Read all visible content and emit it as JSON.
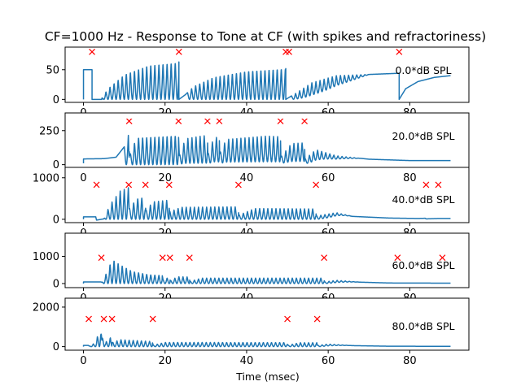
{
  "chart_data": {
    "type": "line",
    "title": "CF=1000 Hz - Response to Tone at CF (with spikes and refractoriness)",
    "xlabel": "Time (msec)",
    "xlim": [
      -4.5,
      94.5
    ],
    "xticks": [
      0,
      20,
      40,
      60,
      80
    ],
    "line_color": "#1f77b4",
    "spike_color": "#ff0000",
    "panels": [
      {
        "level_label": "0.0*dB SPL",
        "ylim": [
          -5,
          88
        ],
        "yticks": [
          0,
          50
        ],
        "envelope": [
          [
            0,
            0
          ],
          [
            0,
            50
          ],
          [
            2.1,
            50
          ],
          [
            2.1,
            0
          ],
          [
            4.5,
            0
          ],
          [
            4.5,
            2
          ],
          [
            6,
            18
          ],
          [
            10,
            42
          ],
          [
            16,
            58
          ],
          [
            22,
            62
          ],
          [
            23.4,
            63
          ],
          [
            23.4,
            0
          ],
          [
            25,
            8
          ],
          [
            27,
            22
          ],
          [
            32,
            38
          ],
          [
            40,
            48
          ],
          [
            49,
            52
          ],
          [
            49.6,
            52
          ],
          [
            49.6,
            0
          ],
          [
            52,
            10
          ],
          [
            56,
            28
          ],
          [
            62,
            40
          ],
          [
            70,
            42
          ],
          [
            77.4,
            44
          ],
          [
            77.4,
            0
          ],
          [
            79,
            18
          ],
          [
            82,
            30
          ],
          [
            86,
            37
          ],
          [
            90,
            40
          ]
        ],
        "oscillation": [
          {
            "start": 4.5,
            "end": 23.4,
            "depth": 1.0
          },
          {
            "start": 25.5,
            "end": 49.6,
            "depth": 1.0
          },
          {
            "start": 51,
            "end": 70,
            "depth_start": 1.0,
            "depth_end": 0.0
          }
        ],
        "spikes": [
          2.1,
          23.4,
          49.6,
          50.4,
          77.4
        ],
        "spike_y": 80
      },
      {
        "level_label": "20.0*dB SPL",
        "ylim": [
          -20,
          380
        ],
        "yticks": [
          0,
          250
        ],
        "envelope": [
          [
            0,
            10
          ],
          [
            0,
            42
          ],
          [
            5,
            44
          ],
          [
            8,
            55
          ],
          [
            10.5,
            150
          ],
          [
            11,
            215
          ],
          [
            11.3,
            65
          ],
          [
            13,
            200
          ],
          [
            22,
            215
          ],
          [
            23.3,
            215
          ],
          [
            23.5,
            65
          ],
          [
            25,
            190
          ],
          [
            29,
            210
          ],
          [
            30.4,
            215
          ],
          [
            30.5,
            75
          ],
          [
            32,
            200
          ],
          [
            33.3,
            200
          ],
          [
            33.4,
            80
          ],
          [
            35,
            185
          ],
          [
            45,
            210
          ],
          [
            48.3,
            205
          ],
          [
            48.4,
            55
          ],
          [
            51,
            155
          ],
          [
            54.2,
            160
          ],
          [
            54.3,
            40
          ],
          [
            57,
            110
          ],
          [
            62,
            65
          ],
          [
            70,
            40
          ],
          [
            80,
            30
          ],
          [
            90,
            30
          ]
        ],
        "oscillation": [
          {
            "start": 10,
            "end": 11.2,
            "depth": 1.0
          },
          {
            "start": 11.5,
            "end": 23.3,
            "depth": 1.0
          },
          {
            "start": 23.6,
            "end": 30.4,
            "depth": 0.95
          },
          {
            "start": 30.6,
            "end": 33.3,
            "depth": 0.9
          },
          {
            "start": 33.6,
            "end": 48.3,
            "depth": 0.9
          },
          {
            "start": 48.6,
            "end": 54.2,
            "depth": 0.85
          },
          {
            "start": 54.4,
            "end": 68,
            "depth_start": 0.85,
            "depth_end": 0.0
          }
        ],
        "spikes": [
          11.2,
          23.3,
          30.4,
          33.3,
          48.3,
          54.2
        ],
        "spike_y": 320
      },
      {
        "level_label": "40.0*dB SPL",
        "ylim": [
          -80,
          1250
        ],
        "yticks": [
          0,
          1000
        ],
        "envelope": [
          [
            0,
            0
          ],
          [
            0,
            60
          ],
          [
            3,
            60
          ],
          [
            3.2,
            -20
          ],
          [
            5,
            10
          ],
          [
            6.5,
            350
          ],
          [
            9,
            680
          ],
          [
            11,
            760
          ],
          [
            11.2,
            250
          ],
          [
            13,
            500
          ],
          [
            15,
            540
          ],
          [
            15.3,
            200
          ],
          [
            17,
            420
          ],
          [
            20.9,
            460
          ],
          [
            21.1,
            180
          ],
          [
            24,
            290
          ],
          [
            37.9,
            300
          ],
          [
            38.1,
            100
          ],
          [
            42,
            260
          ],
          [
            56.9,
            250
          ],
          [
            57.1,
            80
          ],
          [
            62,
            160
          ],
          [
            66,
            70
          ],
          [
            75,
            30
          ],
          [
            82,
            20
          ],
          [
            83.8,
            25
          ],
          [
            84,
            10
          ],
          [
            87,
            20
          ],
          [
            90,
            20
          ]
        ],
        "oscillation": [
          {
            "start": 5,
            "end": 11,
            "depth": 1.0
          },
          {
            "start": 11.3,
            "end": 15.2,
            "depth": 1.0
          },
          {
            "start": 15.4,
            "end": 21,
            "depth": 1.0
          },
          {
            "start": 21.2,
            "end": 38,
            "depth": 1.0
          },
          {
            "start": 38.2,
            "end": 57,
            "depth": 1.0
          },
          {
            "start": 57.2,
            "end": 66,
            "depth_start": 1.0,
            "depth_end": 0.0
          }
        ],
        "spikes": [
          3.2,
          11.1,
          15.2,
          21.0,
          38.0,
          57.0,
          84.0,
          87.0
        ],
        "spike_y": 830
      },
      {
        "level_label": "60.0*dB SPL",
        "ylim": [
          -150,
          1850
        ],
        "yticks": [
          0,
          1000
        ],
        "envelope": [
          [
            0,
            0
          ],
          [
            0,
            60
          ],
          [
            4.3,
            60
          ],
          [
            4.5,
            40
          ],
          [
            6,
            500
          ],
          [
            7,
            900
          ],
          [
            9,
            700
          ],
          [
            12,
            450
          ],
          [
            16,
            330
          ],
          [
            19.3,
            300
          ],
          [
            19.5,
            150
          ],
          [
            21,
            230
          ],
          [
            21.3,
            100
          ],
          [
            23,
            250
          ],
          [
            25.9,
            240
          ],
          [
            26.1,
            80
          ],
          [
            29,
            200
          ],
          [
            58.9,
            200
          ],
          [
            59.1,
            60
          ],
          [
            62,
            120
          ],
          [
            68,
            50
          ],
          [
            75,
            20
          ],
          [
            88,
            15
          ],
          [
            90,
            15
          ]
        ],
        "oscillation": [
          {
            "start": 4.5,
            "end": 19.3,
            "depth": 1.0
          },
          {
            "start": 19.5,
            "end": 21.2,
            "depth": 1.0
          },
          {
            "start": 21.4,
            "end": 26,
            "depth": 1.0
          },
          {
            "start": 26.2,
            "end": 59,
            "depth": 1.0
          },
          {
            "start": 59.2,
            "end": 68,
            "depth_start": 1.0,
            "depth_end": 0.0
          }
        ],
        "spikes": [
          4.4,
          19.4,
          21.2,
          26.0,
          59.0,
          77.0,
          88.0
        ],
        "spike_y": 950
      },
      {
        "level_label": "80.0*dB SPL",
        "ylim": [
          -180,
          2450
        ],
        "yticks": [
          0,
          2000
        ],
        "envelope": [
          [
            0,
            0
          ],
          [
            0,
            60
          ],
          [
            1.2,
            60
          ],
          [
            1.4,
            30
          ],
          [
            3,
            200
          ],
          [
            4.2,
            1100
          ],
          [
            4.5,
            300
          ],
          [
            5,
            900
          ],
          [
            5.4,
            200
          ],
          [
            6.5,
            500
          ],
          [
            7,
            200
          ],
          [
            9,
            350
          ],
          [
            16.8,
            260
          ],
          [
            17.1,
            80
          ],
          [
            20,
            220
          ],
          [
            49.9,
            210
          ],
          [
            50.1,
            70
          ],
          [
            53,
            200
          ],
          [
            57.2,
            200
          ],
          [
            57.4,
            60
          ],
          [
            60,
            130
          ],
          [
            66,
            50
          ],
          [
            75,
            20
          ],
          [
            90,
            15
          ]
        ],
        "oscillation": [
          {
            "start": 1.4,
            "end": 4.4,
            "depth": 1.0
          },
          {
            "start": 4.6,
            "end": 7,
            "depth": 1.0
          },
          {
            "start": 7.2,
            "end": 16.9,
            "depth": 1.0
          },
          {
            "start": 17.1,
            "end": 50,
            "depth": 1.0
          },
          {
            "start": 50.2,
            "end": 57.3,
            "depth": 1.0
          },
          {
            "start": 57.5,
            "end": 66,
            "depth_start": 1.0,
            "depth_end": 0.0
          }
        ],
        "spikes": [
          1.3,
          5.0,
          7.0,
          17.0,
          50.0,
          57.3
        ],
        "spike_y": 1400
      }
    ]
  }
}
